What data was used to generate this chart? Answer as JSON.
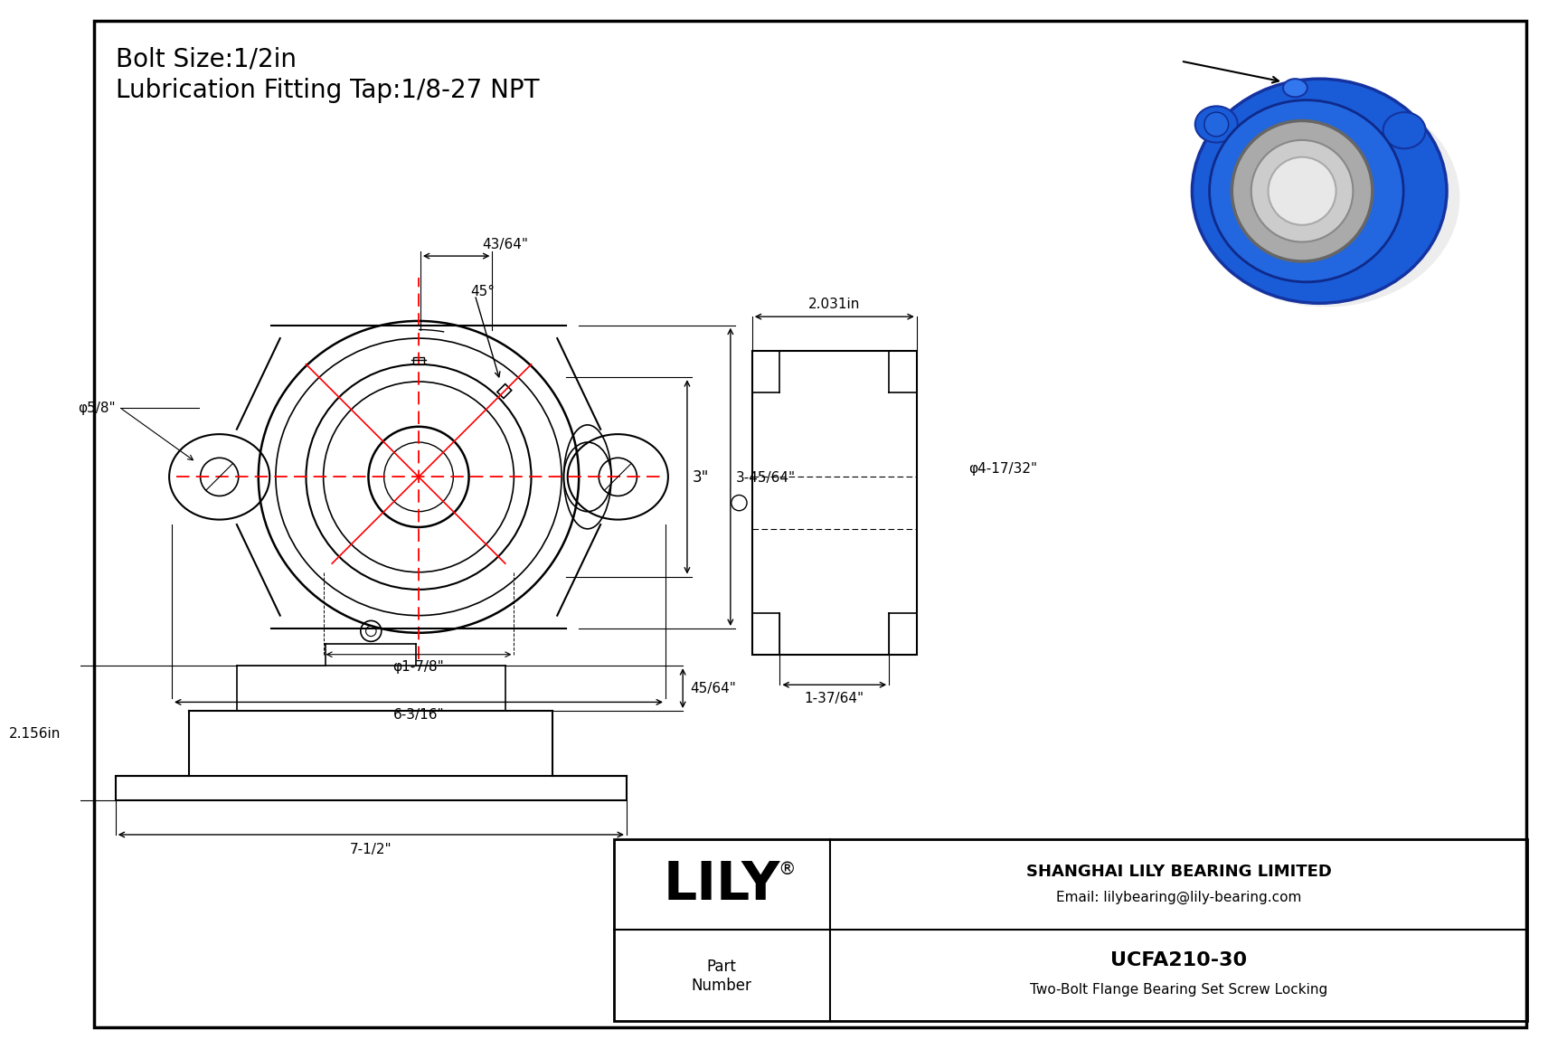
{
  "title_line1": "Bolt Size:1/2in",
  "title_line2": "Lubrication Fitting Tap:1/8-27 NPT",
  "title_fontsize": 20,
  "background_color": "#ffffff",
  "line_color": "#000000",
  "red_color": "#ff0000",
  "border_color": "#000000",
  "company_name": "SHANGHAI LILY BEARING LIMITED",
  "company_email": "Email: lilybearing@lily-bearing.com",
  "part_label": "Part\nNumber",
  "part_number": "UCFA210-30",
  "part_desc": "Two-Bolt Flange Bearing Set Screw Locking",
  "lily_text": "LILY",
  "dim_43_64": "43/64\"",
  "dim_3": "3\"",
  "dim_3_45_64": "3-45/64\"",
  "dim_6_3_16": "6-3/16\"",
  "dim_phi_1_7_8": "φ1-7/8\"",
  "dim_phi_5_8": "φ5/8\"",
  "dim_45deg": "45°",
  "dim_2031": "2.031in",
  "dim_phi_4_17_32": "φ4-17/32\"",
  "dim_1_37_64": "1-37/64\"",
  "dim_2156": "2.156in",
  "dim_7_1_2": "7-1/2\"",
  "dim_45_64": "45/64\""
}
